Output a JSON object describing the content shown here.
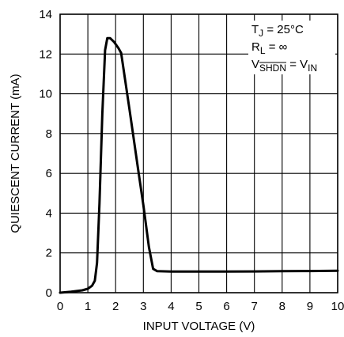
{
  "chart_data": {
    "type": "line",
    "xlabel": "INPUT VOLTAGE (V)",
    "ylabel": "QUIESCENT CURRENT (mA)",
    "xlim": [
      0,
      10
    ],
    "ylim": [
      0,
      14
    ],
    "x_ticks": [
      "0",
      "1",
      "2",
      "3",
      "4",
      "5",
      "6",
      "7",
      "8",
      "9",
      "10"
    ],
    "y_ticks": [
      "0",
      "2",
      "4",
      "6",
      "8",
      "10",
      "12",
      "14"
    ],
    "grid": true,
    "annotations": [
      {
        "main": "T",
        "sub": "J",
        "rest": " = 25°C",
        "overline_sub": false
      },
      {
        "main": "R",
        "sub": "L",
        "rest": " = ∞",
        "overline_sub": false
      },
      {
        "main": "V",
        "sub": "SHDN",
        "rest": " = V",
        "sub2": "IN",
        "overline_sub": true
      }
    ],
    "series": [
      {
        "x": [
          0,
          0.4,
          0.8,
          1.0,
          1.15,
          1.25,
          1.33,
          1.42,
          1.52,
          1.62,
          1.7,
          1.8,
          1.95,
          2.1,
          2.2,
          2.5,
          2.8,
          3.0,
          3.2,
          3.35,
          3.5,
          4,
          5,
          6,
          7,
          8,
          9,
          10
        ],
        "y": [
          0,
          0.05,
          0.12,
          0.2,
          0.35,
          0.6,
          1.5,
          4.5,
          9.0,
          12.2,
          12.8,
          12.8,
          12.6,
          12.3,
          12.05,
          9.2,
          6.3,
          4.4,
          2.3,
          1.2,
          1.08,
          1.06,
          1.06,
          1.06,
          1.07,
          1.08,
          1.09,
          1.1
        ]
      }
    ]
  }
}
